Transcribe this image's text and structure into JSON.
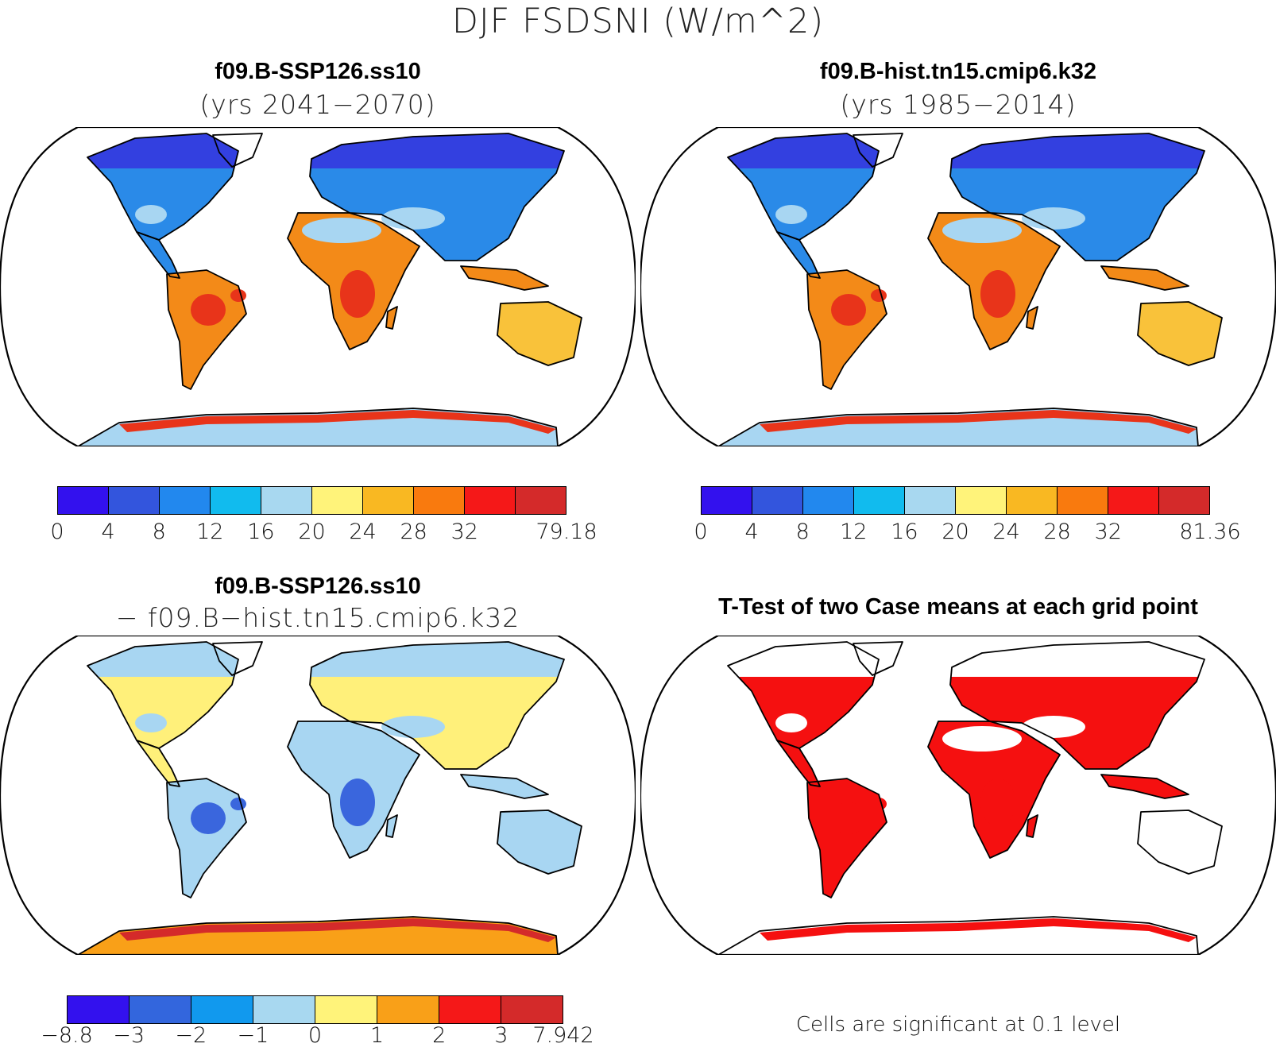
{
  "title": "DJF FSDSNI (W/m^2)",
  "panels": [
    {
      "name": "top-left",
      "title": "f09.B-SSP126.ss10",
      "subtitle": "(yrs 2041−2070)",
      "colorbar": {
        "colors": [
          "#3311ee",
          "#3355dd",
          "#2288ee",
          "#11bbee",
          "#a8d8f0",
          "#fff37a",
          "#f9b822",
          "#f97a0e",
          "#f51818",
          "#d42a2a"
        ],
        "labels": [
          "0",
          "4",
          "8",
          "12",
          "16",
          "20",
          "24",
          "28",
          "32",
          "79.18"
        ],
        "positions": [
          0,
          1,
          2,
          3,
          4,
          5,
          6,
          7,
          8,
          10
        ]
      },
      "fills": {
        "north": "#3340e0",
        "mid": "#2a8ae8",
        "tropic": "#a8d6f2",
        "south": "#f38a18",
        "hot": "#e8341a",
        "aus": "#f9c23a",
        "ant": "#a8d6f2",
        "antrim": "#e8341a"
      }
    },
    {
      "name": "top-right",
      "title": "f09.B-hist.tn15.cmip6.k32",
      "subtitle": "(yrs 1985−2014)",
      "colorbar": {
        "colors": [
          "#3311ee",
          "#3355dd",
          "#2288ee",
          "#11bbee",
          "#a8d8f0",
          "#fff37a",
          "#f9b822",
          "#f97a0e",
          "#f51818",
          "#d42a2a"
        ],
        "labels": [
          "0",
          "4",
          "8",
          "12",
          "16",
          "20",
          "24",
          "28",
          "32",
          "81.36"
        ],
        "positions": [
          0,
          1,
          2,
          3,
          4,
          5,
          6,
          7,
          8,
          10
        ]
      },
      "fills": {
        "north": "#3340e0",
        "mid": "#2a8ae8",
        "tropic": "#a8d6f2",
        "south": "#f38a18",
        "hot": "#e8341a",
        "aus": "#f9c23a",
        "ant": "#a8d6f2",
        "antrim": "#e8341a"
      }
    },
    {
      "name": "bottom-left",
      "title": "f09.B-SSP126.ss10",
      "subtitle": "− f09.B−hist.tn15.cmip6.k32",
      "colorbar": {
        "colors": [
          "#3311ee",
          "#3366dd",
          "#1199ee",
          "#a8d8f0",
          "#fff37a",
          "#f9a018",
          "#f51818",
          "#d42a2a"
        ],
        "labels": [
          "−8.8",
          "−3",
          "−2",
          "−1",
          "0",
          "1",
          "2",
          "3",
          "7.942"
        ],
        "positions": [
          0,
          1,
          2,
          3,
          4,
          5,
          6,
          7,
          8
        ]
      },
      "fills": {
        "north": "#a8d6f2",
        "mid": "#fff07a",
        "tropic": "#a8d6f2",
        "south": "#a8d6f2",
        "hot": "#3a66dd",
        "aus": "#a8d6f2",
        "ant": "#f9a018",
        "antrim": "#d42a2a"
      }
    },
    {
      "name": "bottom-right",
      "title": "T-Test of two Case means at each grid point",
      "note": "Cells are significant at 0.1 level",
      "fills": {
        "north": "#ffffff",
        "mid": "#f51010",
        "tropic": "#ffffff",
        "south": "#f51010",
        "hot": "#f51010",
        "aus": "#ffffff",
        "ant": "#ffffff",
        "antrim": "#f51010"
      }
    }
  ]
}
